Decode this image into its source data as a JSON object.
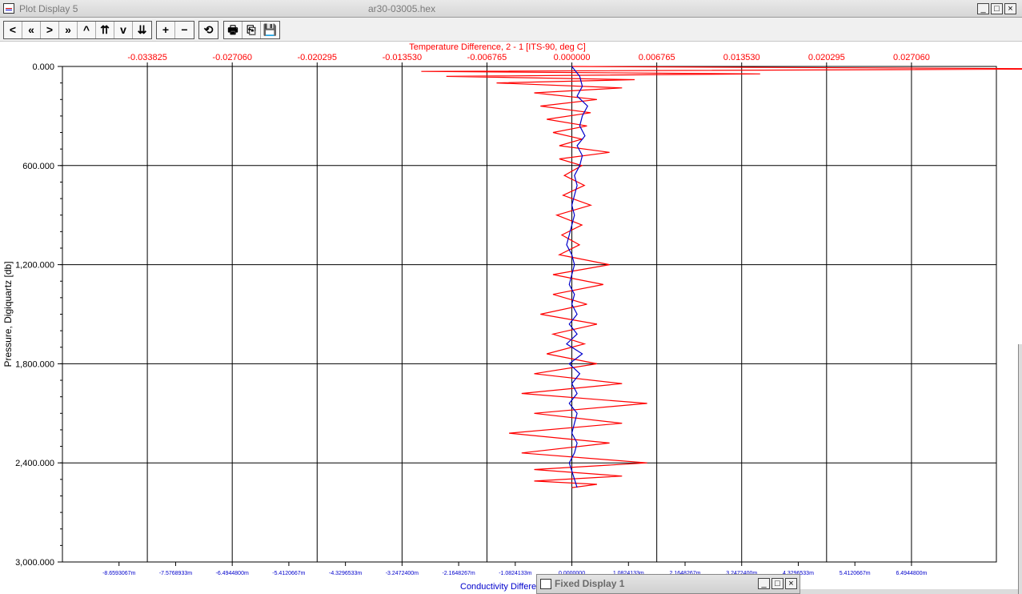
{
  "window": {
    "title": "Plot Display 5",
    "document": "ar30-03005.hex",
    "minimize": "_",
    "maximize": "□",
    "close": "×"
  },
  "toolbar": {
    "nav_buttons": [
      "<",
      "«",
      ">",
      "»",
      "^",
      "⇈",
      "v",
      "⇊"
    ],
    "zoom_in": "+",
    "zoom_out": "−",
    "reset": "⟲",
    "print": "🖶",
    "copy": "⎘",
    "save": "💾"
  },
  "fixed_display": {
    "title": "Fixed Display 1",
    "minimize": "_",
    "maximize": "□",
    "close": "×"
  },
  "chart_data": {
    "type": "line",
    "title": "",
    "top_axis_label": "Temperature Difference, 2 - 1 [ITS-90, deg C]",
    "top_axis_color": "#ff0000",
    "top_ticks": [
      "-0.033825",
      "-0.027060",
      "-0.020295",
      "-0.013530",
      "-0.006765",
      "0.000000",
      "0.006765",
      "0.013530",
      "0.020295",
      "0.027060"
    ],
    "top_range": [
      -0.04059,
      0.033825
    ],
    "bottom_axis_label": "Conductivity Difference",
    "bottom_axis_color": "#0000cc",
    "bottom_ticks": [
      "-8.6593067m",
      "-7.5768933m",
      "-6.4944800m",
      "-5.4120667m",
      "-4.3296533m",
      "-3.2472400m",
      "-2.1648267m",
      "-1.0824133m",
      "0.0000000",
      "1.0824133m",
      "2.1648267m",
      "3.2472400m",
      "4.3296533m",
      "5.4120667m",
      "6.4944800m"
    ],
    "bottom_range": [
      -9.74172,
      8.118
    ],
    "y_axis_label": "Pressure, Digiquartz [db]",
    "y_ticks": [
      "0.000",
      "600.000",
      "1,200.000",
      "1,800.000",
      "2,400.000",
      "3,000.000"
    ],
    "y_range": [
      0,
      3000
    ],
    "y_inverted": true,
    "grid": true,
    "series": [
      {
        "axis": "top",
        "color": "#ff0000",
        "x": [
          0.0,
          0.041,
          -0.012,
          0.015,
          -0.01,
          0.005,
          -0.006,
          0.004,
          -0.003,
          0.002,
          -0.0025,
          0.0015,
          -0.002,
          0.0012,
          -0.0015,
          0.0008,
          -0.001,
          0.003,
          -0.001,
          0.0008,
          -0.0006,
          0.001,
          -0.0007,
          0.0015,
          -0.0012,
          0.0008,
          -0.0008,
          0.0006,
          -0.001,
          0.003,
          -0.0015,
          0.0025,
          -0.0015,
          0.0012,
          -0.0025,
          0.002,
          -0.0015,
          0.001,
          -0.002,
          0.002,
          -0.003,
          0.004,
          -0.004,
          0.006,
          -0.003,
          0.004,
          -0.005,
          0.003,
          -0.004,
          0.006,
          -0.003,
          0.004,
          -0.003,
          0.002,
          0.0
        ],
        "y": [
          0,
          15,
          30,
          45,
          60,
          80,
          100,
          130,
          160,
          200,
          240,
          280,
          320,
          360,
          400,
          440,
          480,
          520,
          560,
          600,
          660,
          720,
          780,
          840,
          900,
          960,
          1020,
          1080,
          1140,
          1200,
          1260,
          1320,
          1380,
          1440,
          1500,
          1560,
          1620,
          1680,
          1740,
          1800,
          1860,
          1920,
          1980,
          2040,
          2100,
          2160,
          2220,
          2280,
          2340,
          2400,
          2440,
          2480,
          2510,
          2530,
          2550
        ]
      },
      {
        "axis": "bottom",
        "color": "#0000cc",
        "x": [
          0.0,
          0.15,
          0.2,
          0.1,
          0.3,
          0.2,
          0.15,
          0.25,
          0.1,
          0.2,
          0.15,
          0.05,
          0.1,
          0.05,
          0.0,
          0.05,
          0.0,
          -0.05,
          -0.1,
          0.0,
          0.05,
          0.0,
          -0.05,
          0.05,
          0.0,
          0.1,
          -0.05,
          0.1,
          -0.1,
          0.2,
          -0.05,
          0.15,
          0.0,
          0.1,
          -0.05,
          0.1,
          0.05,
          0.0,
          0.1,
          0.05,
          -0.05,
          0.1
        ],
        "y": [
          0,
          60,
          120,
          180,
          240,
          300,
          360,
          420,
          480,
          540,
          600,
          660,
          720,
          780,
          840,
          900,
          960,
          1020,
          1080,
          1140,
          1200,
          1260,
          1320,
          1380,
          1440,
          1500,
          1560,
          1620,
          1680,
          1740,
          1800,
          1860,
          1920,
          1980,
          2040,
          2100,
          2160,
          2220,
          2280,
          2340,
          2400,
          2550
        ]
      }
    ]
  }
}
